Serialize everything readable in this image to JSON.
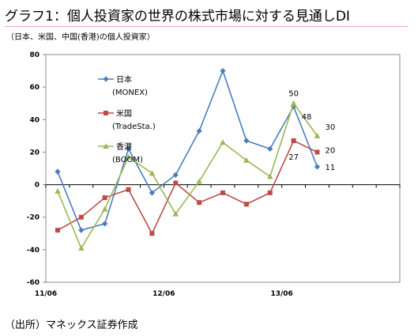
{
  "title": "グラフ1：個人投資家の世界の株式市場に対する見通しDI",
  "subtitle": "（日本、米国、中国(香港)の個人投資家）",
  "source": "（出所）マネックス証券作成",
  "chart_data": {
    "type": "line",
    "ylim": [
      -60,
      80
    ],
    "yticks": [
      -60,
      -40,
      -20,
      0,
      20,
      40,
      60,
      80
    ],
    "x_labels": [
      {
        "index": 0,
        "label": "11/06"
      },
      {
        "index": 5,
        "label": "12/06"
      },
      {
        "index": 10,
        "label": "13/06"
      }
    ],
    "n_points": 15,
    "grid": false,
    "legend_position": "upper-left",
    "series": [
      {
        "name": "日本",
        "sub": "(MONEX)",
        "color": "#4a7ebb",
        "marker": "diamond",
        "values": [
          8,
          -28,
          -24,
          22,
          -5,
          6,
          33,
          70,
          27,
          22,
          48,
          11
        ],
        "x": [
          0,
          1,
          2,
          3,
          4,
          5,
          6,
          7,
          8,
          9,
          10,
          11
        ]
      },
      {
        "name": "米国",
        "sub": "(TradeSta.)",
        "color": "#be4b48",
        "marker": "square",
        "values": [
          -28,
          -20,
          -8,
          -3,
          -30,
          1,
          -11,
          -5,
          -12,
          -5,
          27,
          20
        ],
        "x": [
          0,
          1,
          2,
          3,
          4,
          5,
          6,
          7,
          8,
          9,
          10,
          11
        ]
      },
      {
        "name": "香港",
        "sub": "(BOOM)",
        "color": "#98b954",
        "marker": "triangle",
        "values": [
          -4,
          -39,
          -15,
          17,
          7,
          -18,
          2,
          26,
          15,
          5,
          50,
          30
        ],
        "x": [
          0,
          1,
          2,
          3,
          4,
          5,
          6,
          7,
          8,
          9,
          10,
          11
        ]
      }
    ],
    "data_labels": [
      {
        "text": "50",
        "series": 2,
        "point": 10
      },
      {
        "text": "48",
        "series": 0,
        "point": 10
      },
      {
        "text": "27",
        "series": 1,
        "point": 10
      },
      {
        "text": "30",
        "series": 2,
        "point": 11
      },
      {
        "text": "20",
        "series": 1,
        "point": 11
      },
      {
        "text": "11",
        "series": 0,
        "point": 11
      }
    ]
  }
}
